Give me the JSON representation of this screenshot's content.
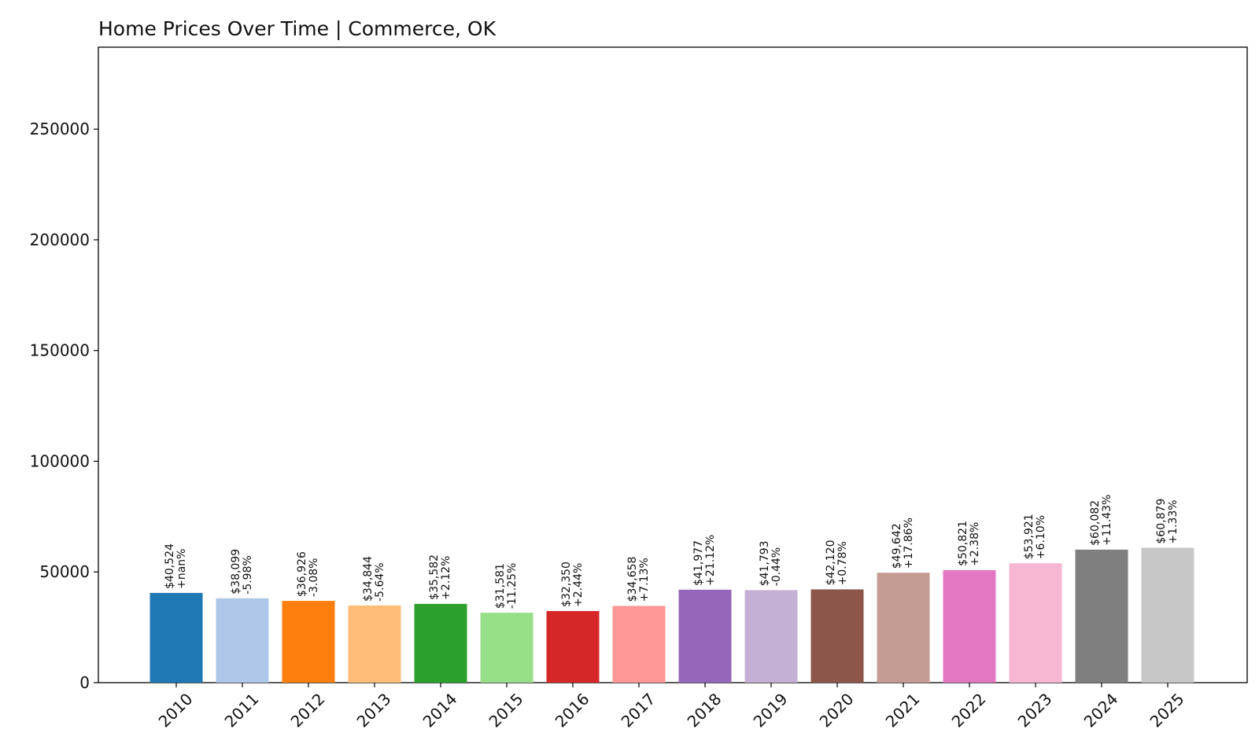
{
  "chart_data": {
    "type": "bar",
    "title": "Home Prices Over Time | Commerce, OK",
    "xlabel": "",
    "ylabel": "",
    "ylim": [
      0,
      287000
    ],
    "yticks": [
      "0",
      "50000",
      "100000",
      "150000",
      "200000",
      "250000"
    ],
    "ytick_values": [
      0,
      50000,
      100000,
      150000,
      200000,
      250000
    ],
    "categories": [
      "2010",
      "2011",
      "2012",
      "2013",
      "2014",
      "2015",
      "2016",
      "2017",
      "2018",
      "2019",
      "2020",
      "2021",
      "2022",
      "2023",
      "2024",
      "2025"
    ],
    "values": [
      40524,
      38099,
      36926,
      34844,
      35582,
      31581,
      32350,
      34658,
      41977,
      41793,
      42120,
      49642,
      50821,
      53921,
      60082,
      60879
    ],
    "value_labels": [
      "$40,524",
      "$38,099",
      "$36,926",
      "$34,844",
      "$35,582",
      "$31,581",
      "$32,350",
      "$34,658",
      "$41,977",
      "$41,793",
      "$42,120",
      "$49,642",
      "$50,821",
      "$53,921",
      "$60,082",
      "$60,879"
    ],
    "change_labels": [
      "+nan%",
      "-5.98%",
      "-3.08%",
      "-5.64%",
      "+2.12%",
      "-11.25%",
      "+2.44%",
      "+7.13%",
      "+21.12%",
      "-0.44%",
      "+0.78%",
      "+17.86%",
      "+2.38%",
      "+6.10%",
      "+11.43%",
      "+1.33%"
    ],
    "colors": [
      "#1f77b4",
      "#aec7e8",
      "#ff7f0e",
      "#ffbb78",
      "#2ca02c",
      "#98df8a",
      "#d62728",
      "#ff9896",
      "#9467bd",
      "#c5b0d5",
      "#8c564b",
      "#c49c94",
      "#e377c2",
      "#f7b6d2",
      "#7f7f7f",
      "#c7c7c7"
    ],
    "grid": false,
    "legend": "none"
  }
}
